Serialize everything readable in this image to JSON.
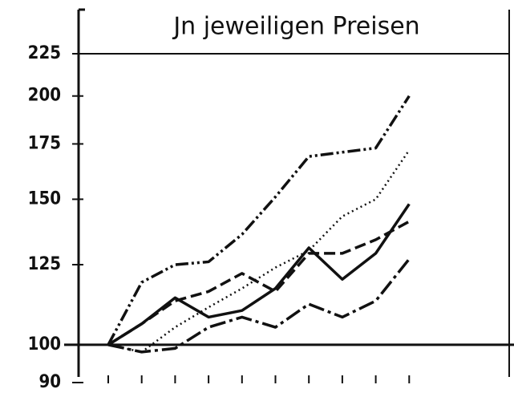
{
  "chart_data": {
    "type": "line",
    "title": "Jn jeweiligen Preisen",
    "categories": [
      null,
      null,
      null,
      null,
      null,
      null,
      null,
      null,
      null,
      null
    ],
    "series": [
      {
        "color": "#111",
        "style": "dashdotdot",
        "values": [
          100,
          119,
          125,
          126,
          136,
          151,
          169,
          171,
          173,
          200
        ]
      },
      {
        "color": "#111",
        "style": "dotted",
        "values": [
          100,
          98,
          105,
          111,
          117,
          124,
          130,
          143,
          150,
          172
        ]
      },
      {
        "color": "#111",
        "style": "solid",
        "values": [
          100,
          106,
          114,
          108,
          110,
          117,
          131,
          120,
          129,
          148
        ]
      },
      {
        "color": "#111",
        "style": "dashed",
        "values": [
          100,
          106,
          113,
          116,
          122,
          116,
          129,
          129,
          134,
          141
        ]
      },
      {
        "color": "#111",
        "style": "longdashdot",
        "values": [
          100,
          98,
          99,
          105,
          108,
          105,
          112,
          108,
          113,
          127
        ]
      }
    ],
    "ylim": [
      90,
      225
    ],
    "yticks": [
      90,
      100,
      125,
      150,
      175,
      200,
      225
    ],
    "log_y": true
  }
}
